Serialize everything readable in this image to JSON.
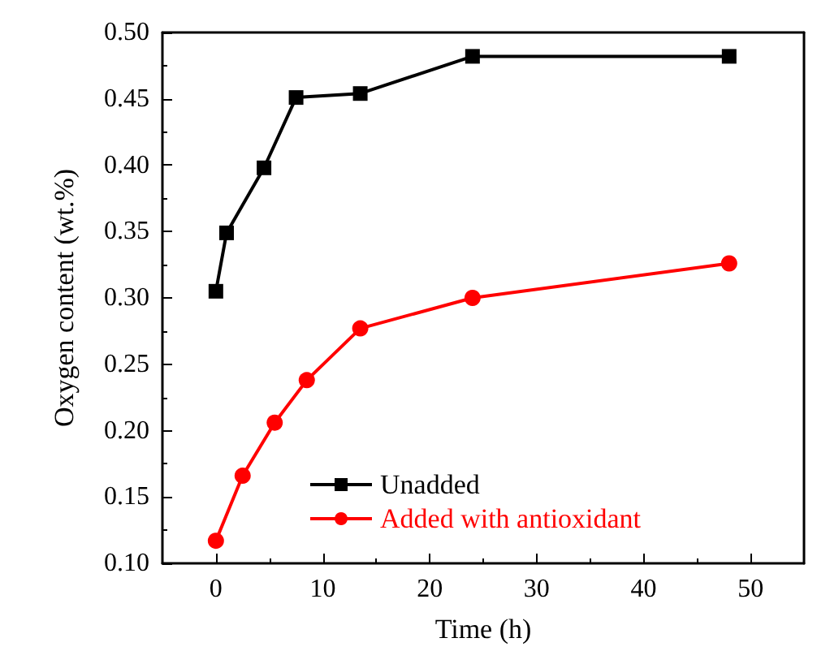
{
  "chart_data": {
    "type": "line",
    "xlabel": "Time (h)",
    "ylabel": "Oxygen content (wt.%)",
    "xlim": [
      -5,
      55
    ],
    "xticks": [
      0,
      10,
      20,
      30,
      40,
      50
    ],
    "ylim": [
      0.1,
      0.5
    ],
    "yticks": [
      {
        "value": 0.1,
        "label": "0.10"
      },
      0.15,
      {
        "value": 0.2,
        "label": "0.20"
      },
      0.25,
      {
        "value": 0.3,
        "label": "0.30"
      },
      0.35,
      {
        "value": 0.4,
        "label": "0.40"
      },
      0.45,
      {
        "value": 0.5,
        "label": "0.50"
      }
    ],
    "legend": "bottom",
    "line_style": "solid",
    "series": [
      {
        "name": "Unadded",
        "color": "#000000",
        "marker": "square",
        "x": [
          0,
          1,
          4.5,
          7.5,
          13.5,
          24,
          48
        ],
        "values": [
          0.305,
          0.349,
          0.398,
          0.451,
          0.454,
          0.482,
          0.482
        ]
      },
      {
        "name": "Added with antioxidant",
        "color": "#ff0000",
        "marker": "circle",
        "x": [
          0,
          2.5,
          5.5,
          8.5,
          13.5,
          24,
          48
        ],
        "values": [
          0.117,
          0.166,
          0.206,
          0.238,
          0.277,
          0.3,
          0.326
        ]
      }
    ]
  }
}
